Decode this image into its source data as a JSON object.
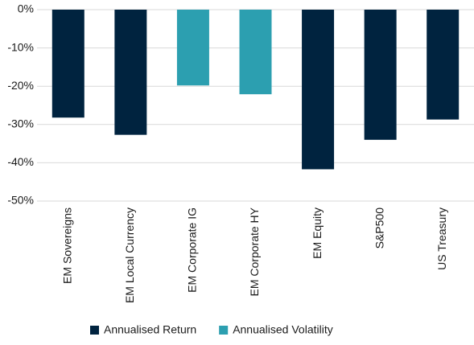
{
  "chart_data": {
    "type": "bar",
    "categories": [
      "EM Sovereigns",
      "EM Local Currency",
      "EM Corporate IG",
      "EM Corporate HY",
      "EM Equity",
      "S&P500",
      "US Treasury"
    ],
    "series": [
      {
        "name": "Annualised Return",
        "color": "#00233f",
        "values": [
          -28.2,
          -32.7,
          null,
          null,
          -41.7,
          -34,
          -28.7
        ]
      },
      {
        "name": "Annualised Volatility",
        "color": "#2c9fb0",
        "values": [
          null,
          null,
          -19.8,
          -22.1,
          null,
          null,
          null
        ]
      }
    ],
    "ylim": [
      -50,
      0
    ],
    "yticks": [
      {
        "value": 0,
        "label": "0%"
      },
      {
        "value": -10,
        "label": "-10%"
      },
      {
        "value": -20,
        "label": "-20%"
      },
      {
        "value": -30,
        "label": "-30%"
      },
      {
        "value": -40,
        "label": "-40%"
      },
      {
        "value": -50,
        "label": "-50%"
      }
    ],
    "grid": true
  }
}
